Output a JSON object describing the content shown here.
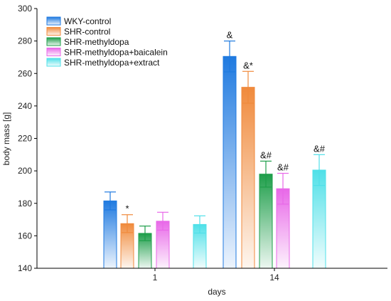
{
  "chart_data": {
    "type": "bar",
    "title": "",
    "xlabel": "days",
    "ylabel": "body mass [g]",
    "ylim": [
      140,
      300
    ],
    "yticks": [
      140,
      160,
      180,
      200,
      220,
      240,
      260,
      280,
      300
    ],
    "categories": [
      "1",
      "14"
    ],
    "grid": false,
    "legend_position": "top-left",
    "series": [
      {
        "name": "WKY-control",
        "color": "#1f7ae0",
        "values": [
          181.5,
          270.5
        ],
        "errors": [
          5.5,
          9.5
        ],
        "annotations": [
          "",
          "&"
        ]
      },
      {
        "name": "SHR-control",
        "color": "#f08a3c",
        "values": [
          167.5,
          251.5
        ],
        "errors": [
          5.5,
          9.8
        ],
        "annotations": [
          "*",
          "&*"
        ]
      },
      {
        "name": "SHR-methyldopa",
        "color": "#1e9e4a",
        "values": [
          161.5,
          198
        ],
        "errors": [
          4.5,
          8
        ],
        "annotations": [
          "",
          "&#"
        ]
      },
      {
        "name": "SHR-methyldopa+baicalein",
        "color": "#e868e8",
        "values": [
          169,
          189
        ],
        "errors": [
          5.5,
          9.5
        ],
        "annotations": [
          "",
          "&#"
        ]
      },
      {
        "name": "SHR-methyldopa+extract",
        "color": "#4fe0e8",
        "values": [
          167,
          200.5
        ],
        "errors": [
          5.3,
          9.5
        ],
        "annotations": [
          "",
          "&#"
        ]
      }
    ]
  }
}
